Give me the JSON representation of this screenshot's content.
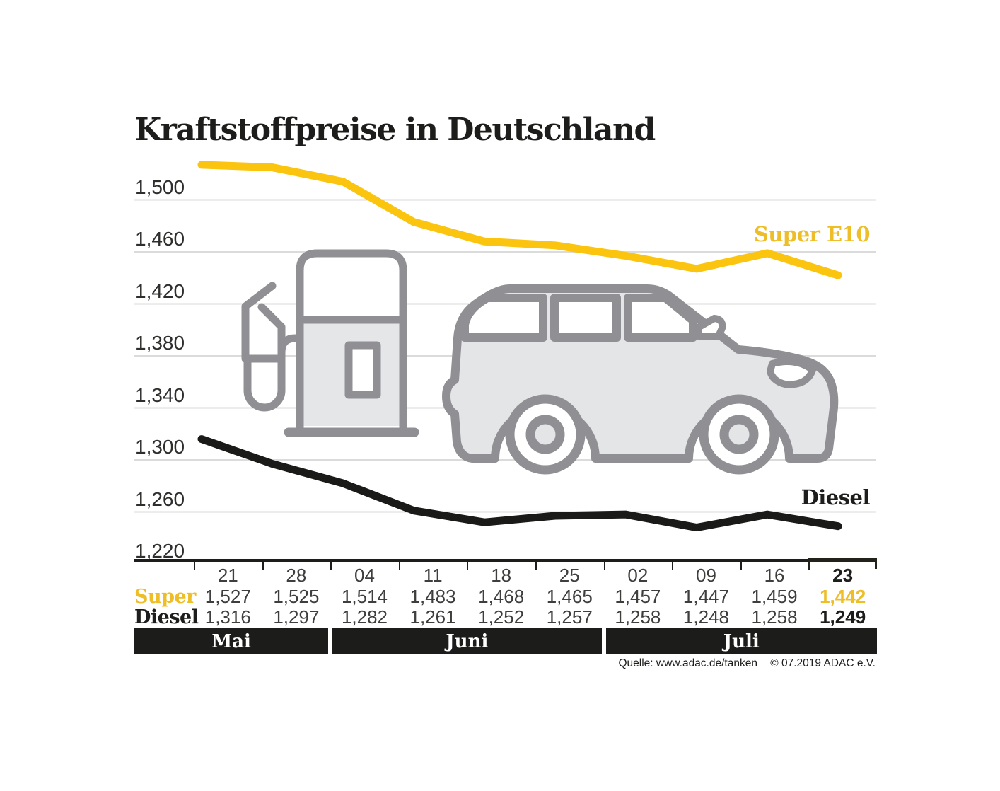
{
  "title": "Kraftstoffpreise in Deutschland",
  "colors": {
    "super_line": "#fbc40f",
    "super_text": "#edbe27",
    "diesel_line": "#1a1a18",
    "text_dark": "#1d1d1b",
    "number_gray": "#3e3e3d",
    "grid": "#dbdbdb",
    "icon_stroke": "#909094",
    "icon_fill": "#e5e6e8",
    "month_bar_bg": "#1c1c1a",
    "month_bar_text": "#ffffff"
  },
  "chart_data": {
    "type": "line",
    "title": "Kraftstoffpreise in Deutschland",
    "categories": [
      "21",
      "28",
      "04",
      "11",
      "18",
      "25",
      "02",
      "09",
      "16",
      "23"
    ],
    "month_groups": [
      {
        "label": "Mai",
        "columns": 2
      },
      {
        "label": "Juni",
        "columns": 4
      },
      {
        "label": "Juli",
        "columns": 4
      }
    ],
    "series": [
      {
        "name": "Super E10",
        "table_label": "Super",
        "values": [
          1.527,
          1.525,
          1.514,
          1.483,
          1.468,
          1.465,
          1.457,
          1.447,
          1.459,
          1.442
        ]
      },
      {
        "name": "Diesel",
        "table_label": "Diesel",
        "values": [
          1.316,
          1.297,
          1.282,
          1.261,
          1.252,
          1.257,
          1.258,
          1.248,
          1.258,
          1.249
        ]
      }
    ],
    "yticks": [
      1.5,
      1.46,
      1.42,
      1.38,
      1.34,
      1.3,
      1.26,
      1.22
    ],
    "ylim": [
      1.22,
      1.54
    ],
    "grid": true,
    "legend_position": "inline-right",
    "highlighted_column_index": 9
  },
  "source": {
    "quelle": "Quelle: www.adac.de/tanken",
    "copyright": "© 07.2019  ADAC e.V."
  }
}
